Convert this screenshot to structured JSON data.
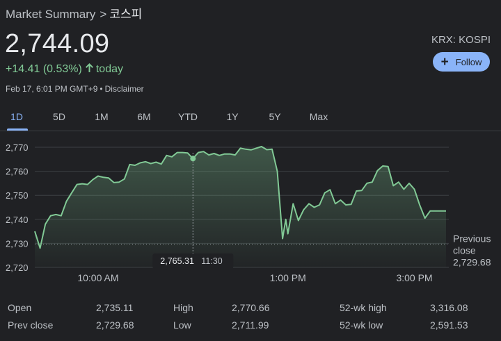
{
  "breadcrumb": {
    "parent": "Market Summary",
    "separator": ">",
    "current": "코스피"
  },
  "quote": {
    "price": "2,744.09",
    "change": "+14.41 (0.53%)",
    "period": "today",
    "timestamp": "Feb 17, 6:01 PM GMT+9",
    "disclaimer": "Disclaimer",
    "exchange": "KRX: KOSPI",
    "follow_label": "Follow"
  },
  "tabs": [
    "1D",
    "5D",
    "1M",
    "6M",
    "YTD",
    "1Y",
    "5Y",
    "Max"
  ],
  "active_tab": "1D",
  "colors": {
    "background": "#202124",
    "line": "#81c995",
    "accent": "#8ab4f8",
    "text_secondary": "#bdc1c6"
  },
  "icons": {
    "change_arrow": "arrow-up-icon",
    "follow": "plus-icon"
  },
  "chart_data": {
    "type": "line",
    "x": [
      "09:00",
      "09:05",
      "09:10",
      "09:15",
      "09:20",
      "09:25",
      "09:30",
      "09:35",
      "09:40",
      "09:45",
      "09:50",
      "09:55",
      "10:00",
      "10:05",
      "10:10",
      "10:15",
      "10:20",
      "10:25",
      "10:30",
      "10:35",
      "10:40",
      "10:45",
      "10:50",
      "10:55",
      "11:00",
      "11:05",
      "11:10",
      "11:15",
      "11:20",
      "11:25",
      "11:30",
      "11:35",
      "11:40",
      "11:45",
      "11:50",
      "11:55",
      "12:00",
      "12:05",
      "12:10",
      "12:15",
      "12:20",
      "12:25",
      "12:30",
      "12:35",
      "12:40",
      "12:45",
      "12:50",
      "12:55",
      "12:58",
      "13:00",
      "13:05",
      "13:10",
      "13:15",
      "13:20",
      "13:25",
      "13:30",
      "13:35",
      "13:40",
      "13:45",
      "13:50",
      "13:55",
      "14:00",
      "14:05",
      "14:10",
      "14:15",
      "14:20",
      "14:25",
      "14:30",
      "14:35",
      "14:40",
      "14:45",
      "14:50",
      "14:55",
      "15:00",
      "15:05",
      "15:10",
      "15:15",
      "15:20",
      "15:25",
      "15:30"
    ],
    "y": [
      2735.0,
      2728.0,
      2738.0,
      2741.5,
      2742.0,
      2741.5,
      2747.5,
      2751.0,
      2754.5,
      2754.8,
      2754.5,
      2756.5,
      2758.0,
      2757.5,
      2757.2,
      2755.3,
      2755.5,
      2756.8,
      2762.8,
      2762.5,
      2763.5,
      2764.0,
      2763.2,
      2763.8,
      2763.0,
      2766.6,
      2766.0,
      2767.8,
      2767.8,
      2767.6,
      2765.3,
      2767.8,
      2768.2,
      2766.8,
      2767.4,
      2766.6,
      2767.2,
      2767.2,
      2766.8,
      2769.6,
      2769.2,
      2768.9,
      2769.6,
      2770.3,
      2769.0,
      2769.2,
      2760.0,
      2732.0,
      2740.0,
      2734.0,
      2746.5,
      2739.5,
      2744.0,
      2746.5,
      2745.0,
      2746.0,
      2751.0,
      2752.3,
      2746.5,
      2748.0,
      2746.0,
      2746.2,
      2751.8,
      2752.0,
      2755.0,
      2755.5,
      2760.3,
      2762.2,
      2762.0,
      2754.0,
      2755.5,
      2752.5,
      2755.0,
      2752.5,
      2746.0,
      2740.5,
      2743.5,
      2743.5,
      2743.5,
      2743.5
    ],
    "ylim": [
      2720,
      2770
    ],
    "y_ticks": [
      "2,770",
      "2,760",
      "2,750",
      "2,740",
      "2,730",
      "2,720"
    ],
    "x_ticks": [
      "10:00 AM",
      "1:00 PM",
      "3:00 PM"
    ],
    "previous_close_label": "Previous close",
    "previous_close_value": "2,729.68",
    "previous_close": 2729.68,
    "tooltip": {
      "value": "2,765.31",
      "time": "11:30"
    },
    "grid": true
  },
  "stats": {
    "open": {
      "label": "Open",
      "value": "2,735.11"
    },
    "high": {
      "label": "High",
      "value": "2,770.66"
    },
    "wk52_high": {
      "label": "52-wk high",
      "value": "3,316.08"
    },
    "prev_close": {
      "label": "Prev close",
      "value": "2,729.68"
    },
    "low": {
      "label": "Low",
      "value": "2,711.99"
    },
    "wk52_low": {
      "label": "52-wk low",
      "value": "2,591.53"
    }
  }
}
